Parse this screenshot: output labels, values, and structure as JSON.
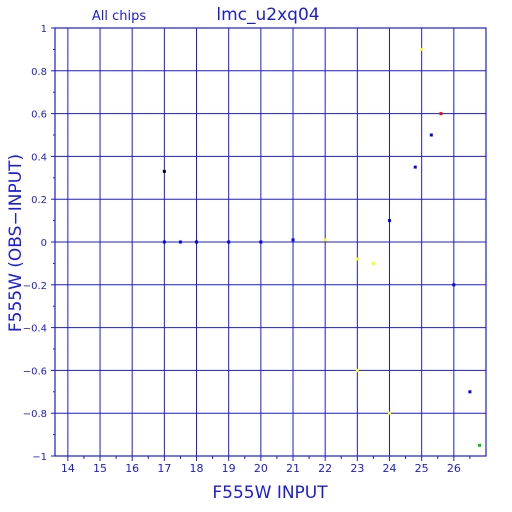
{
  "chart_data": {
    "type": "scatter",
    "title": "lmc_u2xq04",
    "subtitle": "All chips",
    "xlabel": "F555W INPUT",
    "ylabel": "F555W (OBS−INPUT)",
    "xlim": [
      13.6,
      27.0
    ],
    "ylim": [
      -1,
      1
    ],
    "x_ticks": [
      14,
      15,
      16,
      17,
      18,
      19,
      20,
      21,
      22,
      23,
      24,
      25,
      26
    ],
    "y_ticks": [
      -1,
      -0.8,
      -0.6,
      -0.4,
      -0.2,
      0,
      0.2,
      0.4,
      0.6,
      0.8,
      1
    ],
    "y_tick_labels": [
      "−1",
      "−0.8",
      "−0.6",
      "−0.4",
      "−0.2",
      "0",
      "0.2",
      "0.4",
      "0.6",
      "0.8",
      "1"
    ],
    "grid": true,
    "series_colors": {
      "blue": "#0000ff",
      "yellow": "#ffff00",
      "green": "#00cc00",
      "red": "#ff0000",
      "black": "#000000"
    },
    "points": [
      {
        "x": 17.0,
        "y": 0.0,
        "color": "blue"
      },
      {
        "x": 17.5,
        "y": 0.0,
        "color": "blue"
      },
      {
        "x": 18.0,
        "y": 0.0,
        "color": "blue"
      },
      {
        "x": 19.0,
        "y": 0.0,
        "color": "blue"
      },
      {
        "x": 20.0,
        "y": 0.0,
        "color": "blue"
      },
      {
        "x": 21.0,
        "y": 0.01,
        "color": "blue"
      },
      {
        "x": 22.0,
        "y": 0.01,
        "color": "yellow"
      },
      {
        "x": 23.0,
        "y": -0.08,
        "color": "yellow"
      },
      {
        "x": 23.5,
        "y": -0.1,
        "color": "yellow"
      },
      {
        "x": 24.0,
        "y": 0.1,
        "color": "blue"
      },
      {
        "x": 24.8,
        "y": 0.35,
        "color": "blue"
      },
      {
        "x": 25.3,
        "y": 0.5,
        "color": "blue"
      },
      {
        "x": 25.6,
        "y": 0.6,
        "color": "red"
      },
      {
        "x": 26.0,
        "y": -0.2,
        "color": "blue"
      },
      {
        "x": 26.5,
        "y": -0.7,
        "color": "blue"
      },
      {
        "x": 26.8,
        "y": -0.95,
        "color": "green"
      },
      {
        "x": 23.0,
        "y": -0.6,
        "color": "yellow"
      },
      {
        "x": 24.0,
        "y": -0.8,
        "color": "yellow"
      },
      {
        "x": 25.0,
        "y": 0.9,
        "color": "yellow"
      },
      {
        "x": 17.0,
        "y": 0.33,
        "color": "black"
      }
    ]
  }
}
